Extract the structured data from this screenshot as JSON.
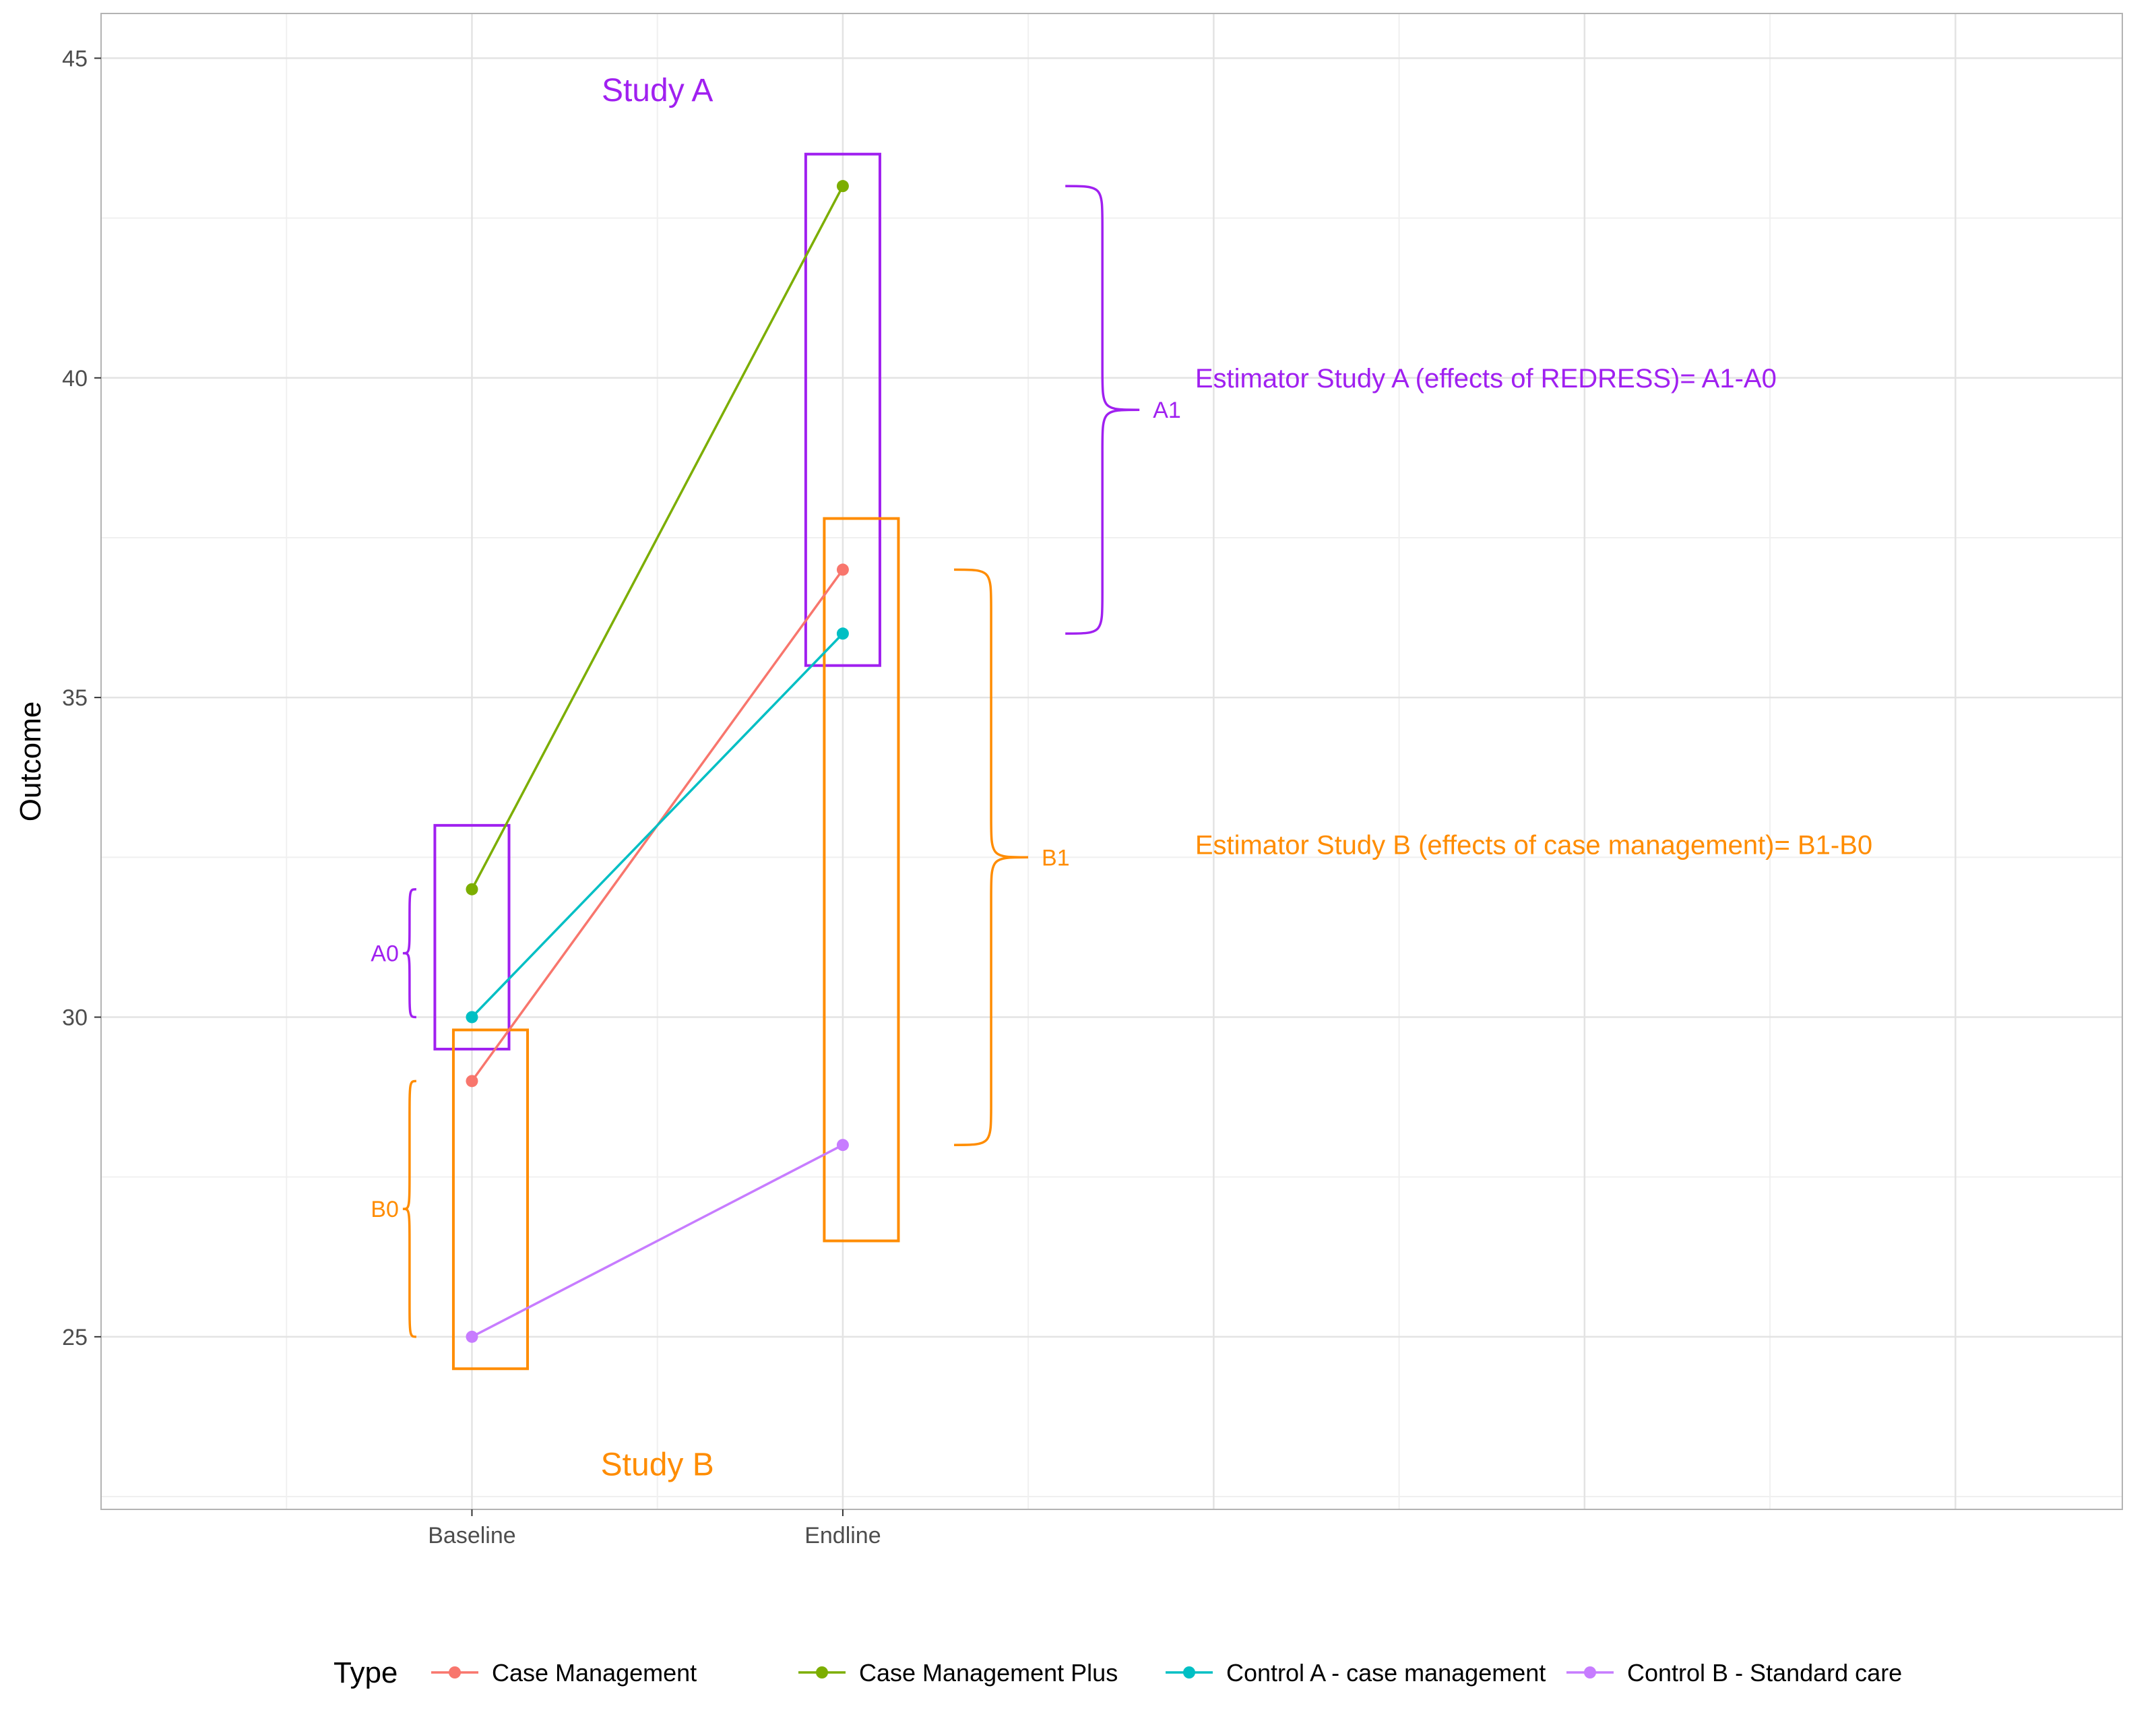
{
  "chart_data": {
    "type": "line",
    "categories": [
      "Baseline",
      "Endline"
    ],
    "ylabel": "Outcome",
    "xlabel": "",
    "ylim": [
      22.3,
      45.7
    ],
    "yticks": [
      25,
      30,
      35,
      40,
      45
    ],
    "grid": true,
    "legend": {
      "title": "Type",
      "position": "bottom"
    },
    "series": [
      {
        "name": "Case Management",
        "color": "#F8766D",
        "values": [
          29,
          37
        ]
      },
      {
        "name": "Case Management Plus",
        "color": "#7CAE00",
        "values": [
          32,
          43
        ]
      },
      {
        "name": "Control A - case management",
        "color": "#00BFC4",
        "values": [
          30,
          36
        ]
      },
      {
        "name": "Control B - Standard care",
        "color": "#C77CFF",
        "values": [
          25,
          28
        ]
      }
    ],
    "annotations": {
      "study_a_label": "Study A",
      "study_b_label": "Study B",
      "study_a_color": "#A020F0",
      "study_b_color": "#FF8C00",
      "a0": "A0",
      "a1": "A1",
      "b0": "B0",
      "b1": "B1",
      "estimator_a": "Estimator Study A (effects of REDRESS)= A1-A0",
      "estimator_b": "Estimator Study B (effects of case management)= B1-B0"
    }
  }
}
